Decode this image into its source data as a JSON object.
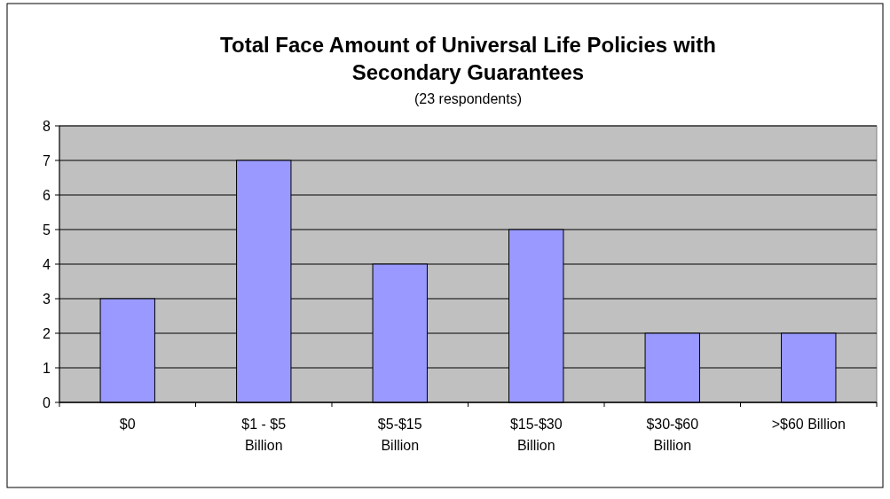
{
  "chart_data": {
    "type": "bar",
    "title": "Total Face Amount of Universal Life Policies with Secondary Guarantees",
    "subtitle": "(23 respondents)",
    "categories": [
      "$0",
      "$1 - $5 Billion",
      "$5-$15 Billion",
      "$15-$30 Billion",
      "$30-$60 Billion",
      ">$60 Billion"
    ],
    "values": [
      3,
      7,
      4,
      5,
      2,
      2
    ],
    "color": "#9999ff",
    "ylim": [
      0,
      8
    ],
    "yticks": [
      0,
      1,
      2,
      3,
      4,
      5,
      6,
      7,
      8
    ],
    "grid": "y"
  }
}
